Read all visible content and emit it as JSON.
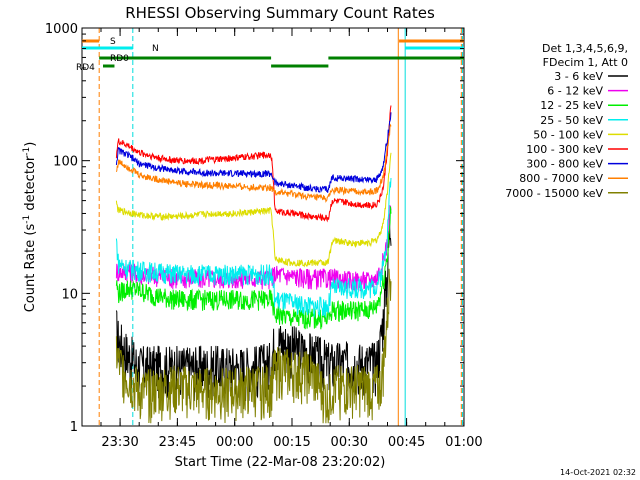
{
  "chart_data": {
    "type": "line",
    "title": "RHESSI Observing Summary Count Rates",
    "xlabel": "Start Time (22-Mar-08 23:20:02)",
    "ylabel_prefix": "Count Rate (s",
    "ylabel_sup": "-1",
    "ylabel_suffix": " detector",
    "ylabel_end": ")",
    "y_scale": "log",
    "ylim": [
      1,
      1000
    ],
    "xlim": [
      "23:20:02",
      "01:00:00"
    ],
    "x_ticks": [
      "23:30",
      "23:45",
      "00:00",
      "00:15",
      "00:30",
      "00:45",
      "01:00"
    ],
    "y_ticks": [
      "1",
      "10",
      "100",
      "1000"
    ],
    "legend_header": [
      "Det 1,3,4,5,6,9,",
      "FDecim 1, Att 0"
    ],
    "timestamp": "14-Oct-2021 02:32",
    "flag_labels": {
      "s": "S",
      "n": "N",
      "rd0": "RD0",
      "rd4": "RD4"
    },
    "x_minutes": [
      7,
      9,
      9.5,
      12,
      15,
      20,
      25,
      30,
      35,
      40,
      45,
      49.5,
      50.5,
      55,
      60,
      64.5,
      65.5,
      70,
      75,
      77,
      78,
      79,
      80,
      81
    ],
    "series": [
      {
        "name": "3 - 6 keV",
        "color": "#000000",
        "values": [
          0,
          5.5,
          4.5,
          3.5,
          2.8,
          2.8,
          2.8,
          2.8,
          2.8,
          2.8,
          2.8,
          3.0,
          4.5,
          4.0,
          3.5,
          3.0,
          3.0,
          3.0,
          3.0,
          3.0,
          4.0,
          7.0,
          15.0,
          40.0
        ]
      },
      {
        "name": "6 - 12 keV",
        "color": "#ee00ee",
        "values": [
          0,
          15.0,
          14.5,
          15.0,
          14.0,
          13.5,
          13.0,
          13.0,
          13.0,
          13.0,
          13.0,
          13.0,
          14.0,
          13.5,
          13.0,
          13.0,
          13.0,
          12.5,
          12.5,
          13.0,
          15.0,
          18.0,
          25.0,
          50.0
        ]
      },
      {
        "name": "12 - 25 keV",
        "color": "#00ee00",
        "values": [
          0,
          12.0,
          10.0,
          11.0,
          10.5,
          9.5,
          9.0,
          9.0,
          9.0,
          9.0,
          9.0,
          9.0,
          7.0,
          6.5,
          6.5,
          6.5,
          7.5,
          7.5,
          7.5,
          8.0,
          9.5,
          13.0,
          20.0,
          45.0
        ]
      },
      {
        "name": "25 - 50 keV",
        "color": "#00eeee",
        "values": [
          0,
          25.0,
          17.0,
          15.5,
          15.0,
          14.5,
          14.0,
          14.0,
          14.0,
          14.0,
          14.0,
          14.0,
          9.0,
          8.5,
          8.0,
          8.0,
          11.0,
          11.0,
          11.0,
          11.5,
          13.0,
          17.0,
          30.0,
          80.0
        ]
      },
      {
        "name": "50 - 100 keV",
        "color": "#dddd00",
        "values": [
          0,
          48.0,
          42.0,
          41.0,
          39.0,
          38.0,
          38.0,
          39.0,
          40.0,
          40.0,
          41.0,
          42.0,
          18.0,
          17.0,
          17.0,
          17.0,
          25.0,
          24.0,
          24.0,
          25.0,
          28.0,
          35.0,
          60.0,
          120.0
        ]
      },
      {
        "name": "100 - 300 keV",
        "color": "#ff0000",
        "values": [
          0,
          110.0,
          140.0,
          130.0,
          115.0,
          105.0,
          100.0,
          100.0,
          102.0,
          105.0,
          108.0,
          112.0,
          42.0,
          40.0,
          38.0,
          37.0,
          50.0,
          48.0,
          46.0,
          47.0,
          52.0,
          65.0,
          120.0,
          270.0
        ]
      },
      {
        "name": "300 - 800 keV",
        "color": "#0000dd",
        "values": [
          0,
          95.0,
          120.0,
          110.0,
          95.0,
          88.0,
          84.0,
          82.0,
          80.0,
          80.0,
          80.0,
          80.0,
          68.0,
          65.0,
          62.0,
          60.0,
          75.0,
          73.0,
          72.0,
          72.0,
          78.0,
          95.0,
          150.0,
          230.0
        ]
      },
      {
        "name": "800 - 7000 keV",
        "color": "#ff7f00",
        "values": [
          0,
          82.0,
          98.0,
          90.0,
          78.0,
          72.0,
          68.0,
          66.0,
          65.0,
          64.0,
          63.0,
          63.0,
          58.0,
          56.0,
          53.0,
          52.0,
          60.0,
          59.0,
          58.0,
          59.0,
          65.0,
          80.0,
          125.0,
          200.0
        ]
      },
      {
        "name": "7000 - 15000 keV",
        "color": "#808000",
        "values": [
          0,
          3.8,
          3.0,
          2.4,
          1.8,
          1.9,
          2.0,
          1.9,
          1.9,
          1.9,
          2.0,
          2.0,
          2.8,
          2.6,
          2.5,
          1.5,
          2.0,
          2.0,
          2.0,
          2.0,
          2.0,
          3.0,
          7.0,
          18.0
        ]
      }
    ],
    "vertical_markers": [
      {
        "minute": 4.5,
        "color": "#ff7f00",
        "style": "dashed"
      },
      {
        "minute": 13.3,
        "color": "#00dddd",
        "style": "dashed"
      },
      {
        "minute": 82.8,
        "color": "#ff7f00",
        "style": "solid"
      },
      {
        "minute": 84.6,
        "color": "#00dddd",
        "style": "solid"
      },
      {
        "minute": 99.3,
        "color": "#ff7f00",
        "style": "dashed"
      },
      {
        "minute": 99.6,
        "color": "#00dddd",
        "style": "dashed"
      }
    ],
    "flag_bars": [
      {
        "label": "s",
        "color": "#ff7f00",
        "segments": [
          [
            0,
            4.5
          ],
          [
            83,
            100
          ]
        ]
      },
      {
        "label": "n",
        "color": "#00eeee",
        "segments": [
          [
            0,
            13.3
          ],
          [
            84.6,
            100
          ]
        ]
      },
      {
        "label": "rd0",
        "color": "#008000",
        "segments": [
          [
            4.5,
            49.5
          ],
          [
            64.5,
            100
          ]
        ]
      },
      {
        "label": "rd4",
        "color": "#008000",
        "segments": [
          [
            5.5,
            8.5
          ],
          [
            49.5,
            64.5
          ]
        ]
      }
    ]
  }
}
